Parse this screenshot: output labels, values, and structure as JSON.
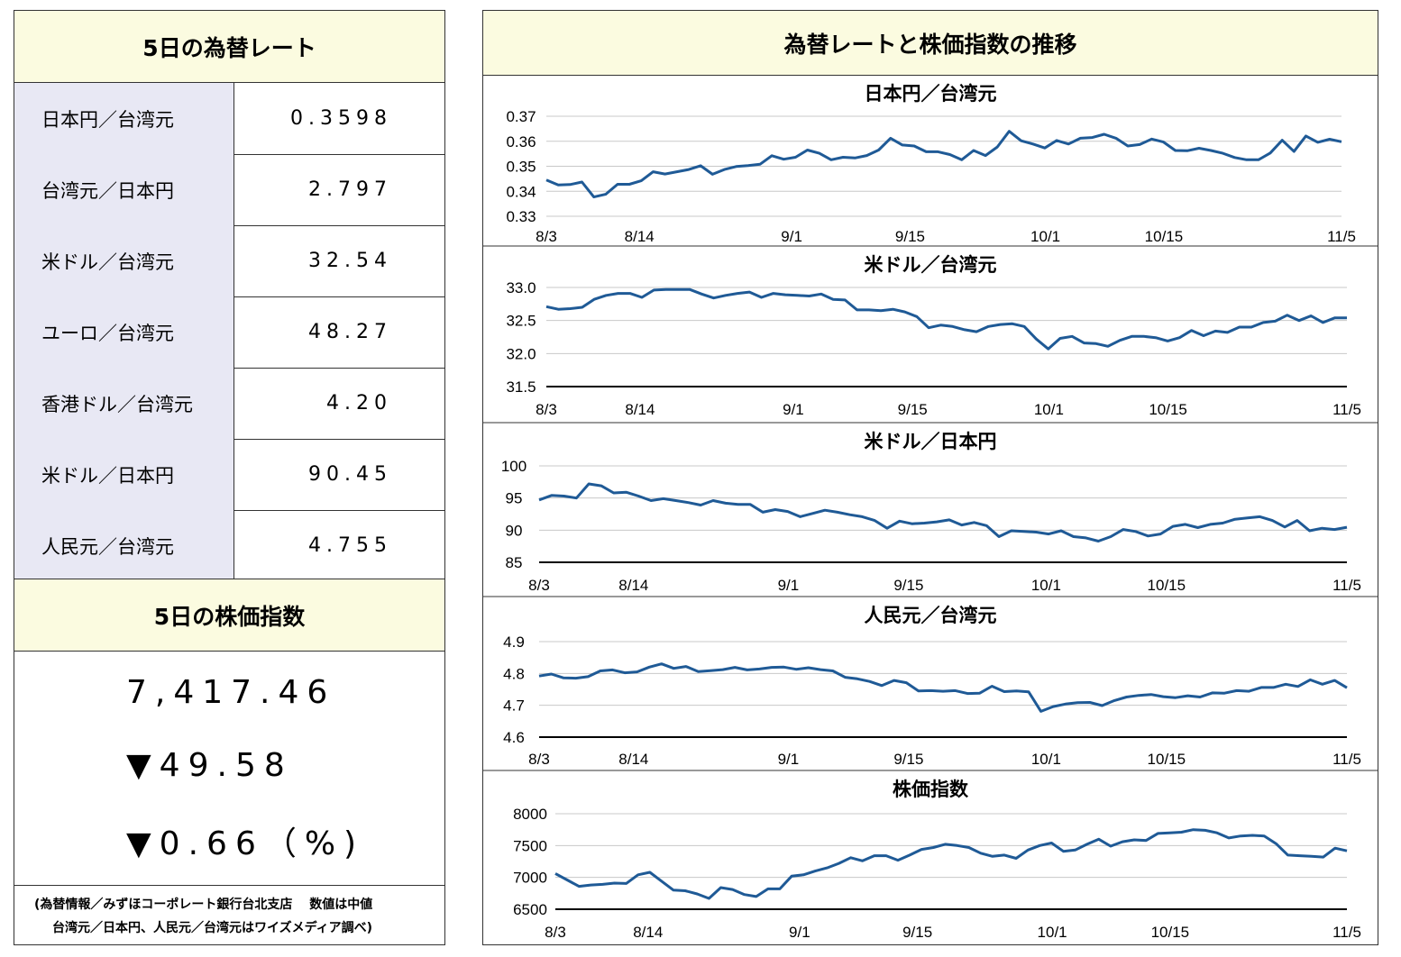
{
  "left": {
    "rates_title": "5日の為替レート",
    "rates": [
      {
        "label": "日本円／台湾元",
        "value": "0.3598"
      },
      {
        "label": "台湾元／日本円",
        "value": "2.797"
      },
      {
        "label": "米ドル／台湾元",
        "value": "32.54"
      },
      {
        "label": "ユーロ／台湾元",
        "value": "48.27"
      },
      {
        "label": "香港ドル／台湾元",
        "value": "4.20"
      },
      {
        "label": "米ドル／日本円",
        "value": "90.45"
      },
      {
        "label": "人民元／台湾元",
        "value": "4.755"
      }
    ],
    "stock_title": "5日の株価指数",
    "stock_value": "7,417.46",
    "stock_change": "▼49.58",
    "stock_change_pct": "▼0.66（%)",
    "note_line1": "(為替情報／みずほコーポレート銀行台北支店　 数値は中値",
    "note_line2": "台湾元／日本円、人民元／台湾元はワイズメディア調べ)"
  },
  "right": {
    "title": "為替レートと株価指数の推移"
  },
  "chart_data": [
    {
      "type": "line",
      "title": "日本円／台湾元",
      "x_ticks": [
        "8/3",
        "8/14",
        "9/1",
        "9/15",
        "10/1",
        "10/15",
        "11/5"
      ],
      "y_ticks": [
        "0.33",
        "0.34",
        "0.35",
        "0.36",
        "0.37"
      ],
      "ylim": [
        0.33,
        0.37
      ],
      "color": "#1f5a96",
      "values": [
        0.3445,
        0.3425,
        0.3427,
        0.3437,
        0.3377,
        0.3388,
        0.3428,
        0.3428,
        0.3442,
        0.3478,
        0.3469,
        0.3478,
        0.3487,
        0.3502,
        0.3468,
        0.3487,
        0.3499,
        0.3503,
        0.3508,
        0.3542,
        0.3528,
        0.3536,
        0.3565,
        0.3552,
        0.3526,
        0.3536,
        0.3533,
        0.3543,
        0.3565,
        0.3612,
        0.3585,
        0.3581,
        0.3558,
        0.3558,
        0.3547,
        0.3526,
        0.3563,
        0.3543,
        0.3577,
        0.364,
        0.3602,
        0.3589,
        0.3573,
        0.3603,
        0.3589,
        0.3612,
        0.3615,
        0.3628,
        0.3612,
        0.3581,
        0.3587,
        0.3609,
        0.3597,
        0.3563,
        0.3562,
        0.3572,
        0.3563,
        0.3552,
        0.3535,
        0.3526,
        0.3526,
        0.3553,
        0.3604,
        0.3559,
        0.3621,
        0.3596,
        0.3608,
        0.3598
      ]
    },
    {
      "type": "line",
      "title": "米ドル／台湾元",
      "x_ticks": [
        "8/3",
        "8/14",
        "9/1",
        "9/15",
        "10/1",
        "10/15",
        "11/5"
      ],
      "y_ticks": [
        "31.5",
        "32.0",
        "32.5",
        "33.0"
      ],
      "ylim": [
        31.5,
        33.0
      ],
      "color": "#1f5a96",
      "values": [
        32.71,
        32.67,
        32.68,
        32.7,
        32.82,
        32.88,
        32.91,
        32.91,
        32.85,
        32.96,
        32.97,
        32.97,
        32.97,
        32.9,
        32.84,
        32.88,
        32.91,
        32.93,
        32.85,
        32.91,
        32.89,
        32.88,
        32.87,
        32.9,
        32.82,
        32.81,
        32.66,
        32.66,
        32.65,
        32.67,
        32.63,
        32.56,
        32.39,
        32.43,
        32.41,
        32.36,
        32.33,
        32.41,
        32.44,
        32.45,
        32.41,
        32.22,
        32.07,
        32.23,
        32.26,
        32.16,
        32.15,
        32.11,
        32.2,
        32.26,
        32.26,
        32.24,
        32.19,
        32.24,
        32.35,
        32.27,
        32.34,
        32.32,
        32.4,
        32.4,
        32.47,
        32.49,
        32.58,
        32.5,
        32.57,
        32.47,
        32.54,
        32.54
      ]
    },
    {
      "type": "line",
      "title": "米ドル／日本円",
      "x_ticks": [
        "8/3",
        "8/14",
        "9/1",
        "9/15",
        "10/1",
        "10/15",
        "11/5"
      ],
      "y_ticks": [
        "85",
        "90",
        "95",
        "100"
      ],
      "ylim": [
        85,
        100
      ],
      "color": "#1f5a96",
      "values": [
        94.7,
        95.4,
        95.3,
        95.0,
        97.2,
        96.9,
        95.8,
        95.9,
        95.3,
        94.6,
        94.9,
        94.6,
        94.3,
        93.9,
        94.6,
        94.2,
        94.0,
        94.0,
        92.8,
        93.2,
        92.9,
        92.1,
        92.6,
        93.1,
        92.8,
        92.4,
        92.1,
        91.5,
        90.3,
        91.4,
        91.0,
        91.1,
        91.3,
        91.6,
        90.8,
        91.2,
        90.7,
        89.0,
        89.9,
        89.8,
        89.7,
        89.4,
        89.9,
        89.0,
        88.8,
        88.3,
        89.0,
        90.1,
        89.8,
        89.1,
        89.4,
        90.6,
        90.9,
        90.4,
        90.9,
        91.1,
        91.7,
        91.9,
        92.1,
        91.5,
        90.5,
        91.5,
        89.9,
        90.3,
        90.1,
        90.45
      ]
    },
    {
      "type": "line",
      "title": "人民元／台湾元",
      "x_ticks": [
        "8/3",
        "8/14",
        "9/1",
        "9/15",
        "10/1",
        "10/15",
        "11/5"
      ],
      "y_ticks": [
        "4.6",
        "4.7",
        "4.8",
        "4.9"
      ],
      "ylim": [
        4.6,
        4.9
      ],
      "color": "#1f5a96",
      "values": [
        4.792,
        4.798,
        4.786,
        4.785,
        4.79,
        4.808,
        4.811,
        4.802,
        4.805,
        4.82,
        4.83,
        4.816,
        4.822,
        4.806,
        4.809,
        4.812,
        4.819,
        4.811,
        4.814,
        4.819,
        4.82,
        4.813,
        4.818,
        4.812,
        4.808,
        4.788,
        4.783,
        4.775,
        4.762,
        4.778,
        4.771,
        4.745,
        4.746,
        4.744,
        4.746,
        4.737,
        4.738,
        4.76,
        4.743,
        4.745,
        4.742,
        4.681,
        4.696,
        4.704,
        4.708,
        4.709,
        4.699,
        4.715,
        4.726,
        4.731,
        4.734,
        4.727,
        4.724,
        4.73,
        4.726,
        4.739,
        4.738,
        4.746,
        4.744,
        4.756,
        4.756,
        4.766,
        4.759,
        4.78,
        4.766,
        4.778,
        4.755
      ]
    },
    {
      "type": "line",
      "title": "株価指数",
      "x_ticks": [
        "8/3",
        "8/14",
        "9/1",
        "9/15",
        "10/1",
        "10/15",
        "11/5"
      ],
      "y_ticks": [
        "6500",
        "7000",
        "7500",
        "8000"
      ],
      "ylim": [
        6500,
        8000
      ],
      "color": "#1f5a96",
      "values": [
        7060,
        6960,
        6860,
        6880,
        6890,
        6910,
        6905,
        7040,
        7080,
        6940,
        6800,
        6790,
        6740,
        6670,
        6840,
        6810,
        6730,
        6700,
        6820,
        6820,
        7020,
        7040,
        7100,
        7150,
        7220,
        7310,
        7260,
        7340,
        7340,
        7270,
        7350,
        7440,
        7470,
        7520,
        7500,
        7470,
        7380,
        7330,
        7350,
        7300,
        7430,
        7500,
        7540,
        7410,
        7430,
        7520,
        7600,
        7490,
        7560,
        7590,
        7580,
        7690,
        7700,
        7710,
        7750,
        7740,
        7700,
        7620,
        7650,
        7660,
        7650,
        7530,
        7350,
        7340,
        7330,
        7320,
        7460,
        7417
      ]
    }
  ]
}
